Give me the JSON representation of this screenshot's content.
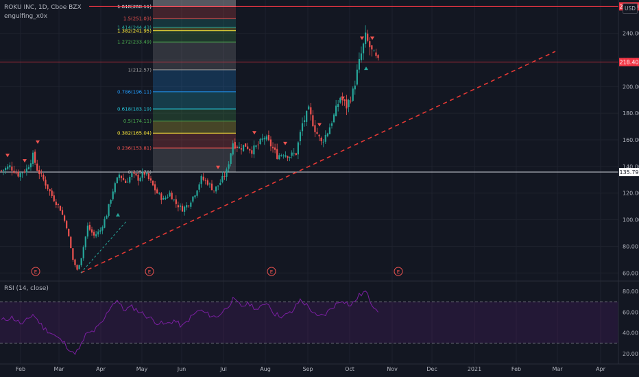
{
  "header": {
    "symbol": "ROKU INC, 1D, Cboe BZX",
    "indicator": "engulfing_x0x",
    "currency_button": "USD"
  },
  "rsi_pane": {
    "label": "RSI (14, close)"
  },
  "colors": {
    "background": "#131722",
    "candle_up": "#26a69a",
    "candle_down": "#ef5350",
    "trendline": "#e53935",
    "rsi_line": "#7b1fa2"
  },
  "chart_data": [
    {
      "type": "candlestick",
      "y_axis_ticks": [
        60,
        80,
        100,
        120,
        140,
        160,
        180,
        200,
        220,
        240
      ],
      "ylim": [
        55,
        265
      ],
      "x_axis_ticks": [
        "Feb",
        "Mar",
        "Apr",
        "May",
        "Jun",
        "Jul",
        "Aug",
        "Sep",
        "Oct",
        "Nov",
        "Dec",
        "2021",
        "Feb",
        "Mar",
        "Apr"
      ],
      "price_labels": [
        {
          "value": "260.20",
          "level": 260.2
        },
        {
          "value": "218.40",
          "level": 218.4
        },
        {
          "value": "135.79",
          "level": 135.79
        }
      ],
      "earnings_markers": [
        "E",
        "E",
        "E",
        "E"
      ],
      "fibonacci_levels": [
        {
          "label": "1.618(260.11)",
          "price": 260.11,
          "color": "#ffffff"
        },
        {
          "label": "1.5(251.03)",
          "price": 251.03,
          "color": "#ef5350"
        },
        {
          "label": "1.414(244.43)",
          "price": 244.43,
          "color": "#26a69a"
        },
        {
          "label": "1.382(241.95)",
          "price": 241.95,
          "color": "#ffeb3b"
        },
        {
          "label": "1.272(233.49)",
          "price": 233.49,
          "color": "#4caf50"
        },
        {
          "label": "1(212.57)",
          "price": 212.57,
          "color": "#9e9e9e"
        },
        {
          "label": "0.786(196.11)",
          "price": 196.11,
          "color": "#2196f3"
        },
        {
          "label": "0.618(183.19)",
          "price": 183.19,
          "color": "#26c6da"
        },
        {
          "label": "0.5(174.11)",
          "price": 174.11,
          "color": "#4caf50"
        },
        {
          "label": "0.382(165.04)",
          "price": 165.04,
          "color": "#ffeb3b"
        },
        {
          "label": "0.236(153.81)",
          "price": 153.81,
          "color": "#ef5350"
        },
        {
          "label": "0(135.78)",
          "price": 135.78,
          "color": "#9e9e9e"
        }
      ],
      "close_path": [
        {
          "t": 0,
          "v": 137
        },
        {
          "t": 4,
          "v": 140
        },
        {
          "t": 8,
          "v": 134
        },
        {
          "t": 12,
          "v": 138
        },
        {
          "t": 15,
          "v": 148
        },
        {
          "t": 17,
          "v": 138
        },
        {
          "t": 20,
          "v": 130
        },
        {
          "t": 24,
          "v": 118
        },
        {
          "t": 28,
          "v": 108
        },
        {
          "t": 31,
          "v": 95
        },
        {
          "t": 34,
          "v": 70
        },
        {
          "t": 36,
          "v": 62
        },
        {
          "t": 38,
          "v": 72
        },
        {
          "t": 41,
          "v": 95
        },
        {
          "t": 44,
          "v": 88
        },
        {
          "t": 47,
          "v": 92
        },
        {
          "t": 50,
          "v": 104
        },
        {
          "t": 53,
          "v": 122
        },
        {
          "t": 56,
          "v": 134
        },
        {
          "t": 59,
          "v": 128
        },
        {
          "t": 62,
          "v": 134
        },
        {
          "t": 65,
          "v": 131
        },
        {
          "t": 68,
          "v": 135
        },
        {
          "t": 71,
          "v": 128
        },
        {
          "t": 74,
          "v": 120
        },
        {
          "t": 77,
          "v": 115
        },
        {
          "t": 80,
          "v": 120
        },
        {
          "t": 83,
          "v": 112
        },
        {
          "t": 86,
          "v": 108
        },
        {
          "t": 89,
          "v": 112
        },
        {
          "t": 92,
          "v": 120
        },
        {
          "t": 95,
          "v": 131
        },
        {
          "t": 98,
          "v": 128
        },
        {
          "t": 101,
          "v": 122
        },
        {
          "t": 104,
          "v": 128
        },
        {
          "t": 107,
          "v": 136
        },
        {
          "t": 110,
          "v": 158
        },
        {
          "t": 113,
          "v": 154
        },
        {
          "t": 116,
          "v": 156
        },
        {
          "t": 119,
          "v": 152
        },
        {
          "t": 122,
          "v": 156
        },
        {
          "t": 125,
          "v": 162
        },
        {
          "t": 128,
          "v": 156
        },
        {
          "t": 131,
          "v": 148
        },
        {
          "t": 134,
          "v": 150
        },
        {
          "t": 137,
          "v": 148
        },
        {
          "t": 140,
          "v": 150
        },
        {
          "t": 143,
          "v": 172
        },
        {
          "t": 146,
          "v": 182
        },
        {
          "t": 149,
          "v": 168
        },
        {
          "t": 152,
          "v": 158
        },
        {
          "t": 155,
          "v": 166
        },
        {
          "t": 158,
          "v": 178
        },
        {
          "t": 161,
          "v": 192
        },
        {
          "t": 164,
          "v": 185
        },
        {
          "t": 167,
          "v": 196
        },
        {
          "t": 170,
          "v": 218
        },
        {
          "t": 173,
          "v": 237
        },
        {
          "t": 176,
          "v": 226
        },
        {
          "t": 179,
          "v": 218
        }
      ],
      "rsi": {
        "y_axis_ticks": [
          20,
          40,
          60,
          80
        ],
        "ylim": [
          12,
          88
        ],
        "bands": [
          30,
          70
        ],
        "path": [
          {
            "t": 0,
            "v": 52
          },
          {
            "t": 5,
            "v": 55
          },
          {
            "t": 10,
            "v": 48
          },
          {
            "t": 15,
            "v": 58
          },
          {
            "t": 20,
            "v": 45
          },
          {
            "t": 25,
            "v": 38
          },
          {
            "t": 30,
            "v": 30
          },
          {
            "t": 34,
            "v": 20
          },
          {
            "t": 37,
            "v": 24
          },
          {
            "t": 40,
            "v": 38
          },
          {
            "t": 44,
            "v": 42
          },
          {
            "t": 48,
            "v": 50
          },
          {
            "t": 52,
            "v": 66
          },
          {
            "t": 55,
            "v": 72
          },
          {
            "t": 58,
            "v": 62
          },
          {
            "t": 62,
            "v": 65
          },
          {
            "t": 66,
            "v": 60
          },
          {
            "t": 70,
            "v": 55
          },
          {
            "t": 74,
            "v": 50
          },
          {
            "t": 78,
            "v": 48
          },
          {
            "t": 82,
            "v": 52
          },
          {
            "t": 86,
            "v": 46
          },
          {
            "t": 90,
            "v": 55
          },
          {
            "t": 94,
            "v": 62
          },
          {
            "t": 98,
            "v": 58
          },
          {
            "t": 102,
            "v": 55
          },
          {
            "t": 106,
            "v": 62
          },
          {
            "t": 110,
            "v": 72
          },
          {
            "t": 114,
            "v": 66
          },
          {
            "t": 118,
            "v": 68
          },
          {
            "t": 122,
            "v": 62
          },
          {
            "t": 126,
            "v": 70
          },
          {
            "t": 130,
            "v": 58
          },
          {
            "t": 134,
            "v": 56
          },
          {
            "t": 138,
            "v": 60
          },
          {
            "t": 142,
            "v": 72
          },
          {
            "t": 146,
            "v": 65
          },
          {
            "t": 150,
            "v": 55
          },
          {
            "t": 154,
            "v": 58
          },
          {
            "t": 158,
            "v": 66
          },
          {
            "t": 162,
            "v": 72
          },
          {
            "t": 166,
            "v": 66
          },
          {
            "t": 170,
            "v": 76
          },
          {
            "t": 173,
            "v": 80
          },
          {
            "t": 176,
            "v": 68
          },
          {
            "t": 179,
            "v": 62
          }
        ]
      }
    }
  ]
}
